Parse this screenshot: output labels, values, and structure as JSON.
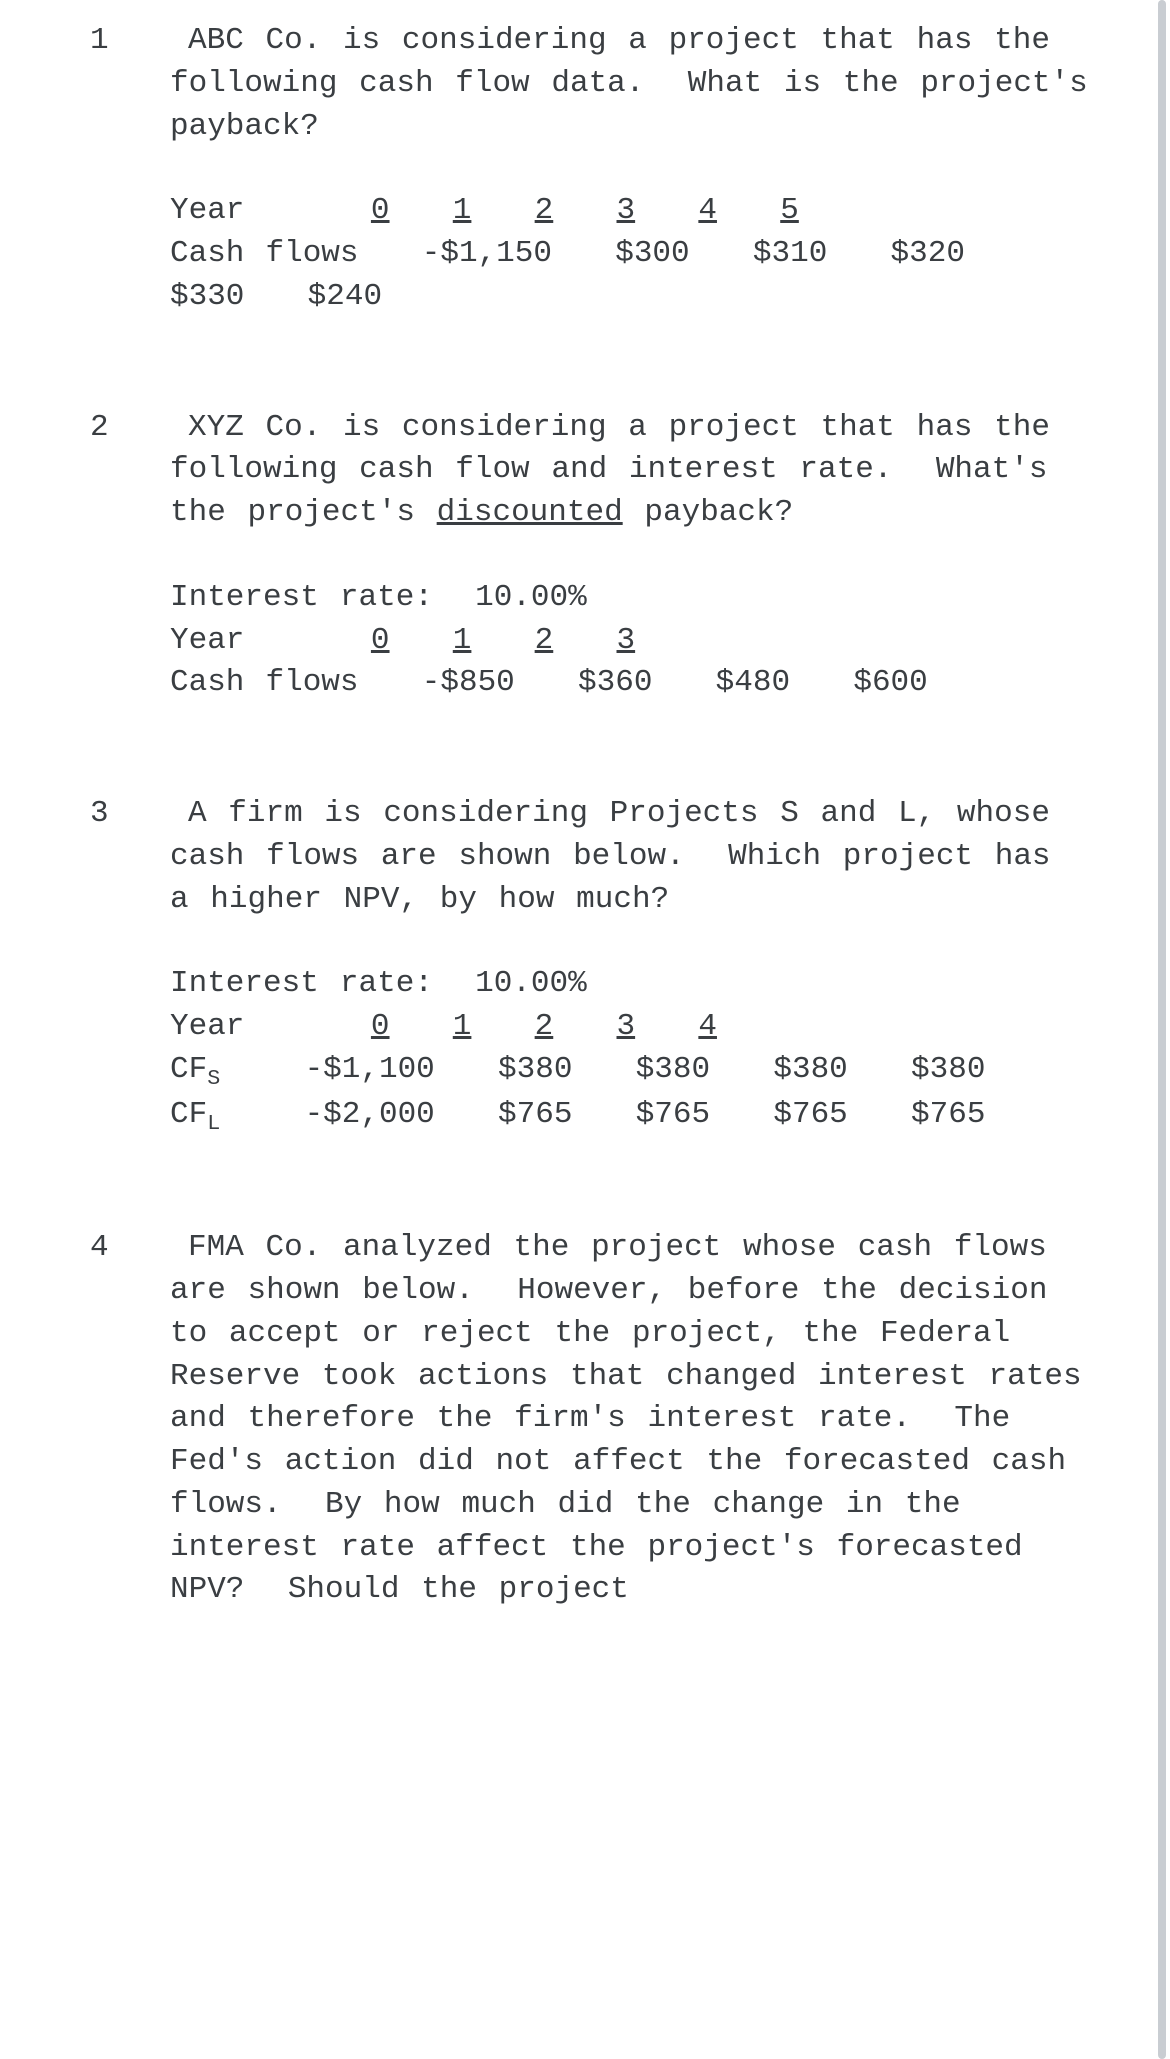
{
  "problems": [
    {
      "question_html": "ABC Co. is considering a project that has the following cash flow data.  What is the project's payback?",
      "data_lines": [
        [
          {
            "t": "Year      "
          },
          {
            "t": "0",
            "u": true
          },
          {
            "t": "   "
          },
          {
            "t": "1",
            "u": true
          },
          {
            "t": "   "
          },
          {
            "t": "2",
            "u": true
          },
          {
            "t": "   "
          },
          {
            "t": "3",
            "u": true
          },
          {
            "t": "   "
          },
          {
            "t": "4",
            "u": true
          },
          {
            "t": "   "
          },
          {
            "t": "5",
            "u": true
          }
        ],
        [
          {
            "t": "Cash flows   -$1,150   $300   $310   $320   $330   $240"
          }
        ]
      ]
    },
    {
      "question_html": "XYZ Co. is considering a project that has the following cash flow and interest rate.  What's the project's <u>discounted</u> payback?",
      "data_lines": [
        [
          {
            "t": "Interest rate:  10.00%"
          }
        ],
        [
          {
            "t": "Year      "
          },
          {
            "t": "0",
            "u": true
          },
          {
            "t": "   "
          },
          {
            "t": "1",
            "u": true
          },
          {
            "t": "   "
          },
          {
            "t": "2",
            "u": true
          },
          {
            "t": "   "
          },
          {
            "t": "3",
            "u": true
          }
        ],
        [
          {
            "t": "Cash flows   -$850   $360   $480   $600"
          }
        ]
      ]
    },
    {
      "question_html": "A firm is considering Projects S and L, whose cash flows are shown below.  Which project has a higher NPV, by how much?",
      "data_lines": [
        [
          {
            "t": "Interest rate:  10.00%"
          }
        ],
        [
          {
            "t": "Year      "
          },
          {
            "t": "0",
            "u": true
          },
          {
            "t": "   "
          },
          {
            "t": "1",
            "u": true
          },
          {
            "t": "   "
          },
          {
            "t": "2",
            "u": true
          },
          {
            "t": "   "
          },
          {
            "t": "3",
            "u": true
          },
          {
            "t": "   "
          },
          {
            "t": "4",
            "u": true
          }
        ],
        [
          {
            "t": "CF",
            "sub": "S"
          },
          {
            "t": "    -$1,100   $380   $380   $380   $380"
          }
        ],
        [
          {
            "t": "CF",
            "sub": "L"
          },
          {
            "t": "    -$2,000   $765   $765   $765   $765"
          }
        ]
      ]
    },
    {
      "question_html": "FMA Co. analyzed the project whose cash flows are shown below.  However, before the decision to accept or reject the project, the Federal Reserve took actions that changed interest rates and therefore the firm's interest rate.  The Fed's action did not affect the forecasted cash flows.  By how much did the change in the interest rate affect the project's forecasted NPV?  Should the project",
      "data_lines": []
    }
  ]
}
